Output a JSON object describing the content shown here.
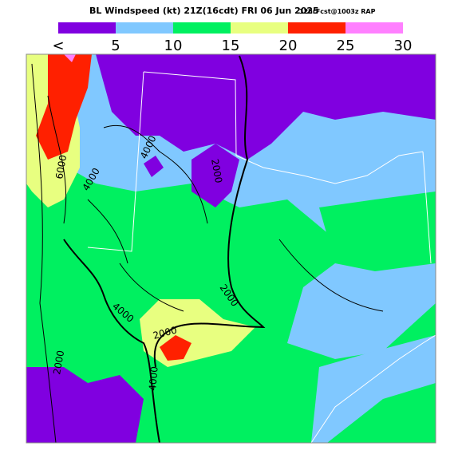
{
  "header": {
    "title": "BL Windspeed (kt) 21Z(16cdt) FRI 06 Jun 2025",
    "subtitle": "12hrFcst@1003z RAP"
  },
  "legend": {
    "labels": [
      "<",
      "5",
      "10",
      "15",
      "20",
      "25",
      "30"
    ],
    "colors": [
      "#8000e0",
      "#80c8ff",
      "#00f060",
      "#e8ff80",
      "#ff2000",
      "#ff80ff"
    ]
  },
  "contour_labels": [
    "6000",
    "4000",
    "4000",
    "2000",
    "2000",
    "2000",
    "4000",
    "2000",
    "4000"
  ]
}
